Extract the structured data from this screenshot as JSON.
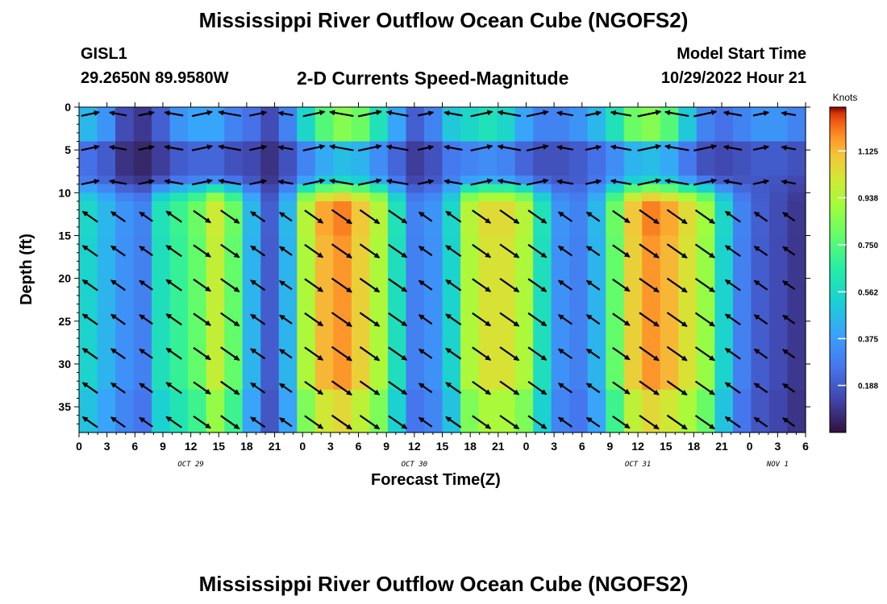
{
  "page": {
    "title_top": "Mississippi River Outflow Ocean Cube (NGOFS2)",
    "title_bottom": "Mississippi River Outflow Ocean Cube (NGOFS2)"
  },
  "header": {
    "station": "GISL1",
    "coords": "29.2650N  89.9580W",
    "subtitle": "2-D Currents Speed-Magnitude",
    "model_start_label": "Model Start Time",
    "model_start_value": "10/29/2022 Hour 21"
  },
  "chart_data": {
    "type": "heatmap",
    "title": "2-D Currents Speed-Magnitude",
    "xlabel": "Forecast Time(Z)",
    "ylabel": "Depth (ft)",
    "x_range_hours": [
      0,
      78
    ],
    "x_ticks": [
      "0",
      "3",
      "6",
      "9",
      "12",
      "15",
      "18",
      "21",
      "0",
      "3",
      "6",
      "9",
      "12",
      "15",
      "18",
      "21",
      "0",
      "3",
      "6",
      "9",
      "12",
      "15",
      "18",
      "21",
      "0",
      "3",
      "6"
    ],
    "date_labels": [
      {
        "label": "OCT 29",
        "hour": 12
      },
      {
        "label": "OCT 30",
        "hour": 36
      },
      {
        "label": "OCT 31",
        "hour": 60
      },
      {
        "label": "NOV 1",
        "hour": 75
      }
    ],
    "y_range_ft": [
      0,
      38
    ],
    "y_ticks": [
      0,
      5,
      10,
      15,
      20,
      25,
      30,
      35
    ],
    "colorbar": {
      "title": "Knots",
      "range": [
        0,
        1.3
      ],
      "ticks": [
        "0.188",
        "0.375",
        "0.562",
        "0.750",
        "0.938",
        "1.125"
      ]
    },
    "depth_layers_ft": [
      0,
      4,
      8,
      12,
      16,
      20,
      24,
      28,
      32,
      36
    ],
    "surface_speed_knots": [
      0.45,
      0.35,
      0.15,
      0.1,
      0.2,
      0.35,
      0.4,
      0.4,
      0.3,
      0.25,
      0.15,
      0.3,
      0.55,
      0.75,
      0.85,
      0.8,
      0.6,
      0.4,
      0.2,
      0.3,
      0.5,
      0.55,
      0.6,
      0.55,
      0.4,
      0.3,
      0.3,
      0.35,
      0.45,
      0.6,
      0.8,
      0.85,
      0.75,
      0.5,
      0.3,
      0.25,
      0.3,
      0.35,
      0.35,
      0.3
    ],
    "deep_speed_knots": [
      0.55,
      0.45,
      0.35,
      0.3,
      0.6,
      0.7,
      0.8,
      1.0,
      0.8,
      0.45,
      0.2,
      0.45,
      0.95,
      1.15,
      1.2,
      1.1,
      0.95,
      0.6,
      0.3,
      0.35,
      0.55,
      0.95,
      1.05,
      1.05,
      0.95,
      0.6,
      0.35,
      0.3,
      0.45,
      0.8,
      1.1,
      1.2,
      1.15,
      1.05,
      0.9,
      0.55,
      0.3,
      0.2,
      0.15,
      0.1
    ]
  }
}
